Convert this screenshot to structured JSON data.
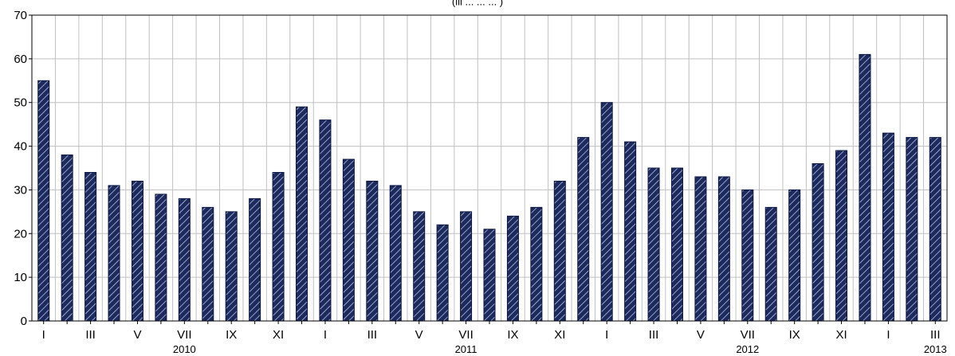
{
  "chart_data": {
    "type": "bar",
    "title": "(ili ... ... ... )",
    "xlabel": "",
    "ylabel": "",
    "ylim": [
      0,
      70
    ],
    "yticks": [
      0,
      10,
      20,
      30,
      40,
      50,
      60,
      70
    ],
    "grid": true,
    "legend": "none",
    "categories": [
      "I 2010",
      "II 2010",
      "III 2010",
      "IV 2010",
      "V 2010",
      "VI 2010",
      "VII 2010",
      "VIII 2010",
      "IX 2010",
      "X 2010",
      "XI 2010",
      "XII 2010",
      "I 2011",
      "II 2011",
      "III 2011",
      "IV 2011",
      "V 2011",
      "VI 2011",
      "VII 2011",
      "VIII 2011",
      "IX 2011",
      "X 2011",
      "XI 2011",
      "XII 2011",
      "I 2012",
      "II 2012",
      "III 2012",
      "IV 2012",
      "V 2012",
      "VI 2012",
      "VII 2012",
      "VIII 2012",
      "IX 2012",
      "X 2012",
      "XI 2012",
      "XII 2012",
      "I 2013",
      "II 2013",
      "III 2013"
    ],
    "values": [
      55,
      38,
      34,
      31,
      32,
      29,
      28,
      26,
      25,
      28,
      34,
      49,
      46,
      37,
      32,
      31,
      25,
      22,
      25,
      21,
      24,
      26,
      32,
      42,
      50,
      41,
      35,
      35,
      33,
      33,
      30,
      26,
      30,
      36,
      39,
      61,
      43,
      42,
      42
    ],
    "x_tick_labels": [
      {
        "index": 0,
        "label": "I"
      },
      {
        "index": 2,
        "label": "III"
      },
      {
        "index": 4,
        "label": "V"
      },
      {
        "index": 6,
        "label": "VII"
      },
      {
        "index": 8,
        "label": "IX"
      },
      {
        "index": 10,
        "label": "XI"
      },
      {
        "index": 12,
        "label": "I"
      },
      {
        "index": 14,
        "label": "III"
      },
      {
        "index": 16,
        "label": "V"
      },
      {
        "index": 18,
        "label": "VII"
      },
      {
        "index": 20,
        "label": "IX"
      },
      {
        "index": 22,
        "label": "XI"
      },
      {
        "index": 24,
        "label": "I"
      },
      {
        "index": 26,
        "label": "III"
      },
      {
        "index": 28,
        "label": "V"
      },
      {
        "index": 30,
        "label": "VII"
      },
      {
        "index": 32,
        "label": "IX"
      },
      {
        "index": 34,
        "label": "XI"
      },
      {
        "index": 36,
        "label": "I"
      },
      {
        "index": 38,
        "label": "III"
      }
    ],
    "year_labels": [
      {
        "index": 6,
        "label": "2010"
      },
      {
        "index": 18,
        "label": "2011"
      },
      {
        "index": 30,
        "label": "2012"
      },
      {
        "index": 38,
        "label": "2013"
      }
    ],
    "colors": {
      "bar_fill": "#1c2a5e",
      "bar_hatch": "#c9d3ee",
      "grid": "#c0c0c0",
      "axis": "#000000"
    }
  }
}
